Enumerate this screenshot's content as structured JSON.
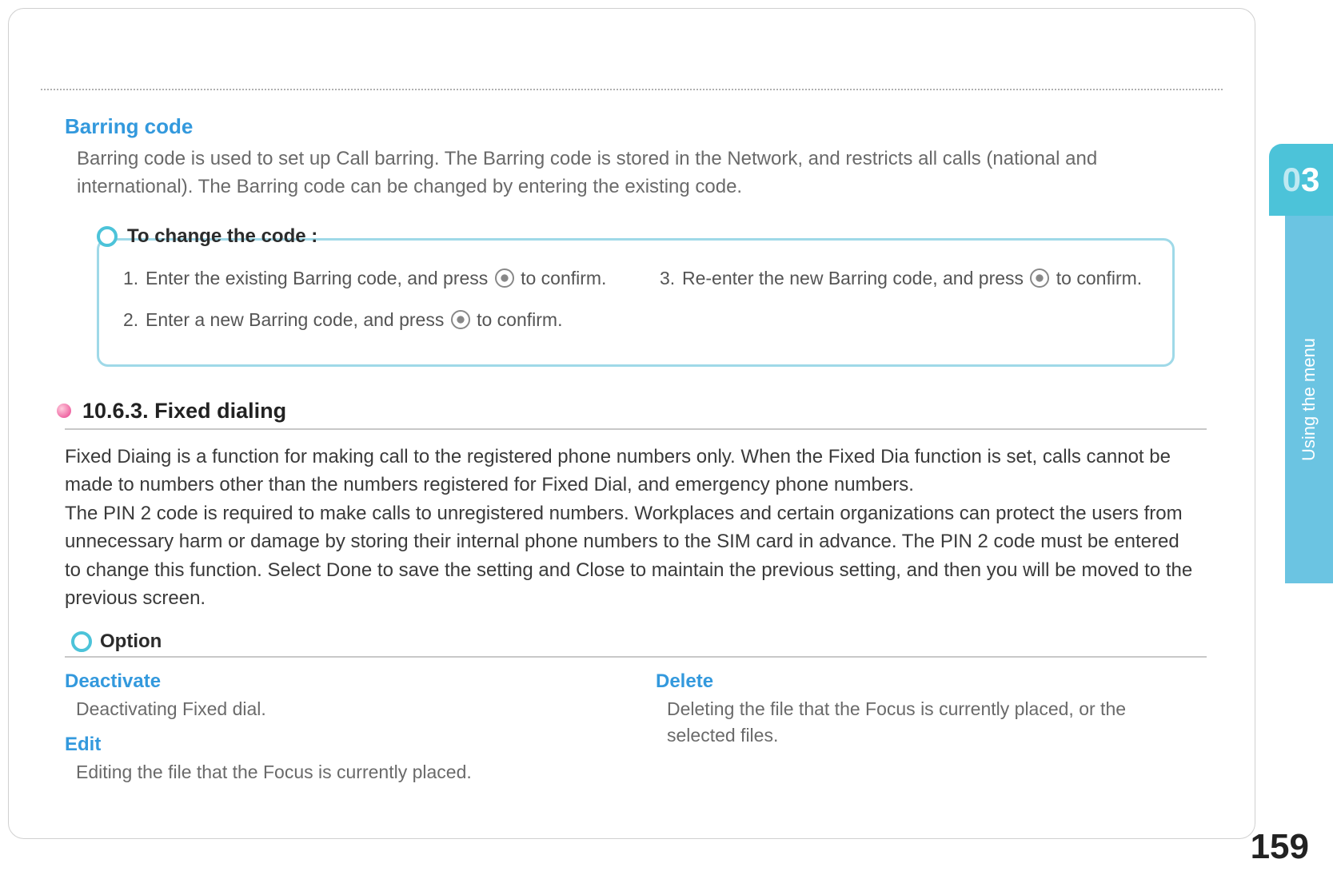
{
  "colors": {
    "accent_blue": "#3399dd",
    "tab_cyan": "#4cc3d9",
    "tab_cyan_light": "#6bc4e2",
    "box_border": "#9fd9e8",
    "body_text": "#3a3a3a",
    "grey_text": "#6a6a6a",
    "rule": "#c8c8c8",
    "pink_bullet": "#e83e8c"
  },
  "barring": {
    "title": "Barring code",
    "body": "Barring code is used to set up Call barring. The Barring code is stored in the Network, and restricts all calls (national and international). The Barring code can be changed by entering the existing code."
  },
  "change_code": {
    "heading": "To change the code :",
    "steps_left": [
      {
        "n": "1.",
        "before": "Enter the existing Barring code, and press ",
        "after": " to confirm."
      },
      {
        "n": "2.",
        "before": "Enter a new Barring code, and press ",
        "after": " to confirm."
      }
    ],
    "steps_right": [
      {
        "n": "3.",
        "before": "Re-enter the new Barring code, and press ",
        "after": " to confirm."
      }
    ]
  },
  "fixed_dialing": {
    "number": "10.6.3. Fixed dialing",
    "body": "Fixed Diaing is a function for making call to the registered phone numbers only. When the Fixed Dia function is set, calls cannot be made to numbers other than the numbers registered for Fixed Dial, and emergency phone numbers.\nThe PIN 2 code is required to make calls to unregistered numbers. Workplaces and certain organizations can protect the users from unnecessary harm or damage by storing their internal phone numbers to the SIM card in advance. The PIN 2 code must be entered to change this function. Select Done to save the setting and Close to maintain the previous setting, and then you will be moved to the previous screen."
  },
  "option": {
    "heading": "Option",
    "left": [
      {
        "title": "Deactivate",
        "body": "Deactivating Fixed dial."
      },
      {
        "title": "Edit",
        "body": "Editing the file that the Focus is currently placed."
      }
    ],
    "right": [
      {
        "title": "Delete",
        "body": "Deleting the file that the Focus is currently placed, or the selected files."
      }
    ]
  },
  "tab": {
    "chapter": "03",
    "label": "Using the menu"
  },
  "page_number": "159"
}
